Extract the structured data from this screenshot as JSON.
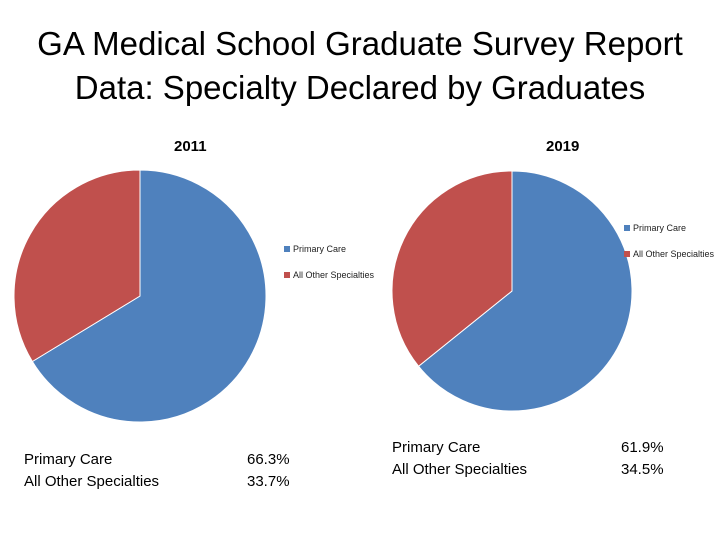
{
  "title": {
    "line1": "GA Medical School Graduate Survey Report",
    "line2": "Data: Specialty Declared by Graduates"
  },
  "colors": {
    "primary_care": "#4F81BD",
    "all_other": "#C0504D"
  },
  "chart_data": [
    {
      "type": "pie",
      "title": "2011",
      "categories": [
        "Primary Care",
        "All Other Specialties"
      ],
      "values": [
        66.3,
        33.7
      ],
      "labels": [
        "66.3%",
        "33.7%"
      ],
      "legend": [
        "Primary Care",
        "All Other Specialties"
      ]
    },
    {
      "type": "pie",
      "title": "2019",
      "categories": [
        "Primary Care",
        "All Other Specialties"
      ],
      "values": [
        61.9,
        34.5
      ],
      "labels": [
        "61.9%",
        "34.5%"
      ],
      "legend": [
        "Primary Care",
        "All Other Specialties"
      ]
    }
  ]
}
